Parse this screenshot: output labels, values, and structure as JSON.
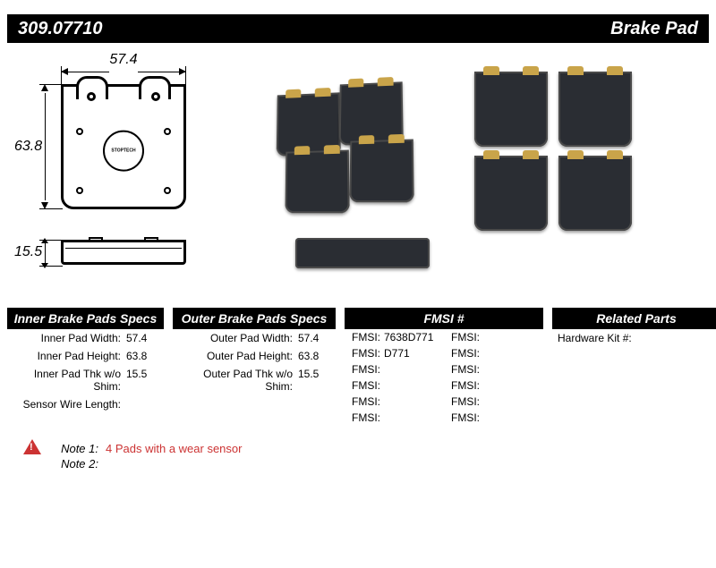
{
  "header": {
    "part_number": "309.07710",
    "title": "Brake Pad"
  },
  "dimensions": {
    "width": "57.4",
    "height": "63.8",
    "thickness": "15.5"
  },
  "logo_text": "STOPTECH",
  "specs": {
    "inner": {
      "heading": "Inner Brake Pads Specs",
      "rows": [
        {
          "label": "Inner Pad Width:",
          "value": "57.4"
        },
        {
          "label": "Inner Pad Height:",
          "value": "63.8"
        },
        {
          "label": "Inner Pad Thk w/o Shim:",
          "value": "15.5"
        },
        {
          "label": "Sensor Wire Length:",
          "value": ""
        }
      ]
    },
    "outer": {
      "heading": "Outer Brake Pads Specs",
      "rows": [
        {
          "label": "Outer Pad Width:",
          "value": "57.4"
        },
        {
          "label": "Outer Pad Height:",
          "value": "63.8"
        },
        {
          "label": "Outer Pad Thk w/o Shim:",
          "value": "15.5"
        }
      ]
    },
    "fmsi": {
      "heading": "FMSI #",
      "left": [
        {
          "label": "FMSI:",
          "value": "7638D771"
        },
        {
          "label": "FMSI:",
          "value": "D771"
        },
        {
          "label": "FMSI:",
          "value": ""
        },
        {
          "label": "FMSI:",
          "value": ""
        },
        {
          "label": "FMSI:",
          "value": ""
        },
        {
          "label": "FMSI:",
          "value": ""
        }
      ],
      "right": [
        {
          "label": "FMSI:",
          "value": ""
        },
        {
          "label": "FMSI:",
          "value": ""
        },
        {
          "label": "FMSI:",
          "value": ""
        },
        {
          "label": "FMSI:",
          "value": ""
        },
        {
          "label": "FMSI:",
          "value": ""
        },
        {
          "label": "FMSI:",
          "value": ""
        }
      ]
    },
    "related": {
      "heading": "Related Parts",
      "rows": [
        {
          "label": "Hardware Kit #:",
          "value": ""
        }
      ]
    }
  },
  "notes": {
    "note1_label": "Note 1:",
    "note1_value": "4 Pads with a wear sensor",
    "note2_label": "Note 2:",
    "note2_value": ""
  }
}
